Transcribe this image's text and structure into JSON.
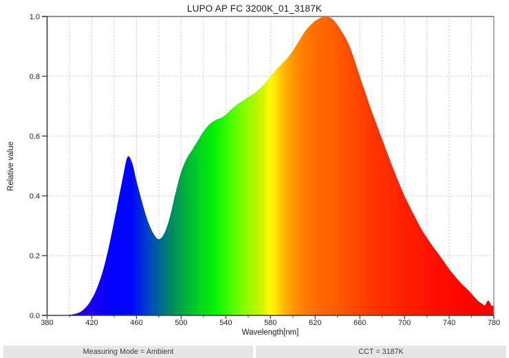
{
  "title": "LUPO AP FC 3200K_01_3187K",
  "footer": {
    "measuring_mode": "Measuring Mode = Ambient",
    "cct": "CCT = 3187K"
  },
  "colors": {
    "background": "#ffffff",
    "grid": "#c4c4c4",
    "axis_dark": "#3c3c3c",
    "border_gray": "#909090",
    "footer_bg": "#e6e6e6",
    "text": "#1a1a1a"
  },
  "chart_data": {
    "type": "area",
    "title": "LUPO AP FC 3200K_01_3187K",
    "xlabel": "Wavelength[nm]",
    "ylabel": "Relative value",
    "xlim": [
      380,
      780
    ],
    "ylim": [
      0,
      1.0
    ],
    "x_ticks": [
      380,
      420,
      460,
      500,
      540,
      580,
      620,
      660,
      700,
      740,
      780
    ],
    "x_grid_step": 20,
    "y_ticks": [
      0,
      0.2,
      0.4,
      0.6,
      0.8,
      1.0
    ],
    "y_tick_labels": [
      "0.0",
      "0.2",
      "0.4",
      "0.6",
      "0.8",
      "1.0"
    ],
    "grid": "dashed",
    "legend": "none",
    "series": [
      {
        "name": "spectral-power-distribution",
        "points": [
          [
            380,
            0
          ],
          [
            390,
            0
          ],
          [
            397,
            0.001
          ],
          [
            402,
            0.003
          ],
          [
            406,
            0.006
          ],
          [
            410,
            0.012
          ],
          [
            415,
            0.028
          ],
          [
            420,
            0.055
          ],
          [
            425,
            0.095
          ],
          [
            430,
            0.15
          ],
          [
            435,
            0.225
          ],
          [
            440,
            0.315
          ],
          [
            444,
            0.39
          ],
          [
            448,
            0.465
          ],
          [
            452,
            0.53
          ],
          [
            456,
            0.512
          ],
          [
            460,
            0.45
          ],
          [
            465,
            0.38
          ],
          [
            470,
            0.318
          ],
          [
            475,
            0.275
          ],
          [
            480,
            0.255
          ],
          [
            485,
            0.275
          ],
          [
            490,
            0.33
          ],
          [
            495,
            0.41
          ],
          [
            500,
            0.48
          ],
          [
            505,
            0.525
          ],
          [
            510,
            0.555
          ],
          [
            515,
            0.585
          ],
          [
            520,
            0.615
          ],
          [
            525,
            0.638
          ],
          [
            530,
            0.652
          ],
          [
            535,
            0.66
          ],
          [
            540,
            0.672
          ],
          [
            545,
            0.69
          ],
          [
            550,
            0.705
          ],
          [
            555,
            0.718
          ],
          [
            560,
            0.73
          ],
          [
            565,
            0.742
          ],
          [
            570,
            0.757
          ],
          [
            575,
            0.776
          ],
          [
            580,
            0.8
          ],
          [
            585,
            0.822
          ],
          [
            590,
            0.841
          ],
          [
            595,
            0.86
          ],
          [
            600,
            0.885
          ],
          [
            605,
            0.915
          ],
          [
            610,
            0.945
          ],
          [
            615,
            0.968
          ],
          [
            620,
            0.985
          ],
          [
            625,
            0.996
          ],
          [
            630,
            1.0
          ],
          [
            635,
            0.993
          ],
          [
            640,
            0.972
          ],
          [
            645,
            0.943
          ],
          [
            650,
            0.908
          ],
          [
            655,
            0.858
          ],
          [
            660,
            0.8
          ],
          [
            665,
            0.745
          ],
          [
            670,
            0.69
          ],
          [
            675,
            0.64
          ],
          [
            680,
            0.59
          ],
          [
            685,
            0.54
          ],
          [
            690,
            0.49
          ],
          [
            695,
            0.444
          ],
          [
            700,
            0.4
          ],
          [
            705,
            0.362
          ],
          [
            710,
            0.325
          ],
          [
            715,
            0.29
          ],
          [
            720,
            0.26
          ],
          [
            725,
            0.233
          ],
          [
            730,
            0.208
          ],
          [
            735,
            0.182
          ],
          [
            740,
            0.155
          ],
          [
            745,
            0.132
          ],
          [
            750,
            0.11
          ],
          [
            755,
            0.092
          ],
          [
            760,
            0.073
          ],
          [
            764,
            0.056
          ],
          [
            767,
            0.045
          ],
          [
            770,
            0.038
          ],
          [
            772,
            0.034
          ],
          [
            775,
            0.05
          ],
          [
            778,
            0.032
          ],
          [
            780,
            0.035
          ]
        ]
      }
    ],
    "spectrum_gradient_stops": [
      [
        400,
        "#3000d8"
      ],
      [
        420,
        "#1800ef"
      ],
      [
        440,
        "#0000ff"
      ],
      [
        456,
        "#0008fc"
      ],
      [
        468,
        "#0038d2"
      ],
      [
        480,
        "#00649a"
      ],
      [
        492,
        "#008c5e"
      ],
      [
        505,
        "#00b43c"
      ],
      [
        518,
        "#00d71e"
      ],
      [
        530,
        "#06f203"
      ],
      [
        542,
        "#3cfc00"
      ],
      [
        554,
        "#7cfc00"
      ],
      [
        565,
        "#a8f800"
      ],
      [
        574,
        "#d8f200"
      ],
      [
        579,
        "#fdfd00"
      ],
      [
        584,
        "#ffe800"
      ],
      [
        590,
        "#ffc000"
      ],
      [
        600,
        "#ff9600"
      ],
      [
        610,
        "#ff7d00"
      ],
      [
        622,
        "#ff6c00"
      ],
      [
        632,
        "#ff6400"
      ],
      [
        655,
        "#ff4900"
      ],
      [
        675,
        "#ff3300"
      ],
      [
        700,
        "#ff2000"
      ],
      [
        725,
        "#ff1000"
      ],
      [
        750,
        "#ff0400"
      ],
      [
        780,
        "#f60000"
      ]
    ]
  }
}
